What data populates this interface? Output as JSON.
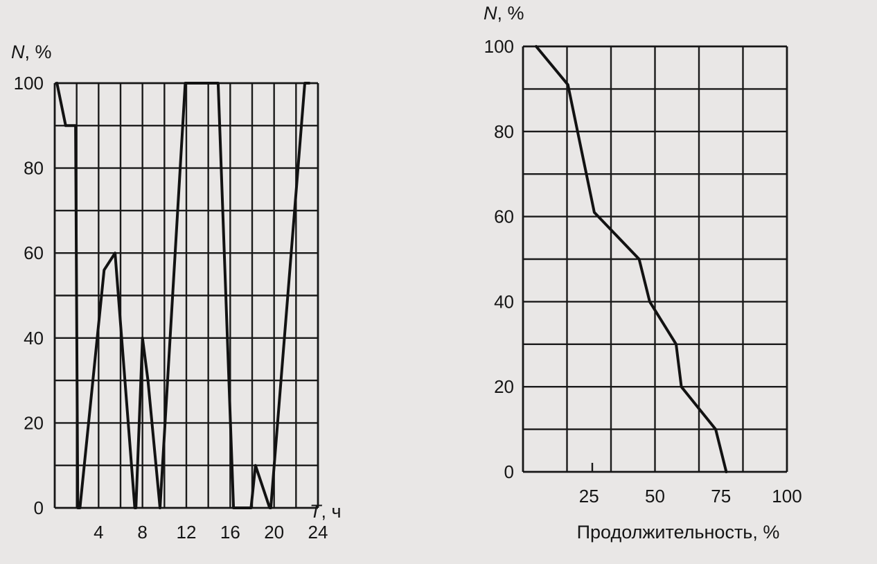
{
  "colors": {
    "background": "#e9e7e6",
    "ink": "#121212"
  },
  "chart_data": [
    {
      "type": "line",
      "title": "",
      "xlabel_italic": "T",
      "xlabel_suffix": ", ч",
      "ylabel_italic": "N",
      "ylabel_suffix": ", %",
      "xlim": [
        0,
        24
      ],
      "ylim": [
        0,
        100
      ],
      "x_ticks": [
        4,
        8,
        12,
        16,
        20,
        24
      ],
      "y_ticks": [
        0,
        20,
        40,
        60,
        80,
        100
      ],
      "x_grid_step": 2,
      "y_grid_step": 10,
      "grid": true,
      "series": [
        {
          "x": [
            0.2,
            1.0,
            1.9,
            2.1,
            2.3,
            4.5,
            5.5,
            7.3,
            7.4,
            8.0,
            8.5,
            9.6,
            11.9,
            12.1,
            14.8,
            14.9,
            16.3,
            16.6,
            17.9,
            18.3,
            19.6,
            19.7,
            22.8,
            23.0,
            23.2
          ],
          "y": [
            100,
            90,
            90,
            0,
            0,
            56,
            60,
            0,
            0,
            40,
            30,
            0,
            100,
            100,
            100,
            100,
            0,
            0,
            0,
            10,
            0,
            0,
            100,
            100,
            100
          ]
        }
      ]
    },
    {
      "type": "line",
      "title": "",
      "xlabel": "Продолжительность, %",
      "ylabel_italic": "N",
      "ylabel_suffix": ", %",
      "xlim": [
        0,
        100
      ],
      "ylim": [
        0,
        100
      ],
      "x_ticks": [
        25,
        50,
        75,
        100
      ],
      "y_ticks": [
        0,
        20,
        40,
        60,
        80,
        100
      ],
      "x_grid_step": 16.667,
      "y_grid_step": 10,
      "grid": true,
      "series": [
        {
          "x": [
            5,
            17,
            27,
            44,
            48,
            58,
            60,
            73,
            77
          ],
          "y": [
            100,
            91,
            61,
            50,
            40,
            30,
            20,
            10,
            0
          ]
        }
      ]
    }
  ]
}
